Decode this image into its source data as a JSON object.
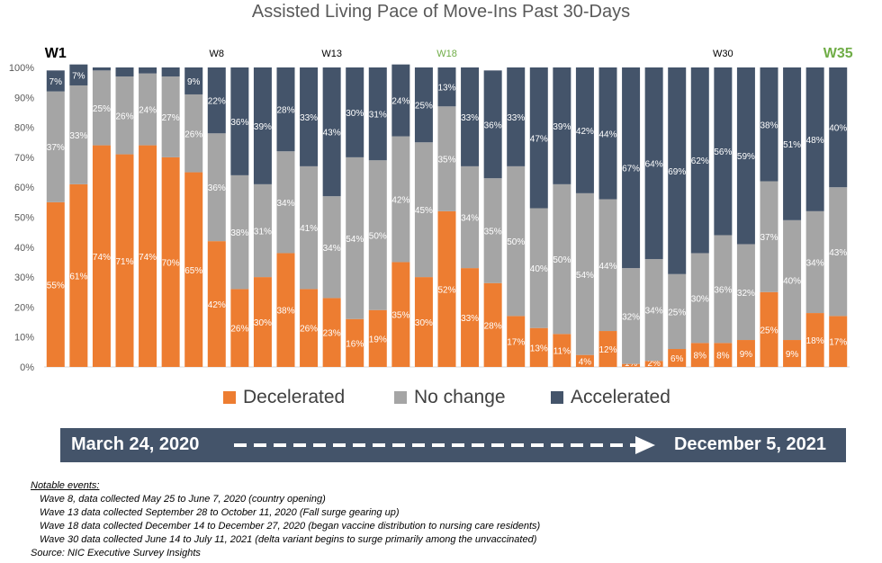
{
  "chart_data": {
    "type": "bar",
    "stacked": true,
    "title": "Assisted Living Pace of Move-Ins Past 30-Days",
    "y_tick_labels": [
      "0%",
      "10%",
      "20%",
      "30%",
      "40%",
      "50%",
      "60%",
      "70%",
      "80%",
      "90%",
      "100%"
    ],
    "ylim": [
      0,
      100
    ],
    "legend_position": "bottom",
    "bar_count": 35,
    "wave_labels": [
      {
        "bar": 1,
        "text": "W1",
        "color": "#000000",
        "size": "large"
      },
      {
        "bar": 8,
        "text": "W8",
        "color": "#000000",
        "size": "small"
      },
      {
        "bar": 13,
        "text": "W13",
        "color": "#000000",
        "size": "small"
      },
      {
        "bar": 18,
        "text": "W18",
        "color": "#70AD47",
        "size": "small"
      },
      {
        "bar": 30,
        "text": "W30",
        "color": "#000000",
        "size": "small"
      },
      {
        "bar": 35,
        "text": "W35",
        "color": "#70AD47",
        "size": "large"
      }
    ],
    "series": [
      {
        "name": "Decelerated",
        "color": "#ED7D31",
        "values": [
          55,
          61,
          74,
          71,
          74,
          70,
          65,
          42,
          26,
          30,
          38,
          26,
          23,
          16,
          19,
          35,
          30,
          52,
          33,
          28,
          17,
          13,
          11,
          4,
          12,
          1,
          2,
          6,
          8,
          8,
          9,
          25,
          9,
          18,
          17
        ],
        "labels": [
          "55%",
          "61%",
          "74%",
          "71%",
          "74%",
          "70%",
          "65%",
          "42%",
          "26%",
          "30%",
          "38%",
          "26%",
          "23%",
          "16%",
          "19%",
          "35%",
          "30%",
          "52%",
          "33%",
          "28%",
          "17%",
          "13%",
          "11%",
          "4%",
          "12%",
          "1%",
          "2%",
          "6%",
          "8%",
          "8%",
          "9%",
          "25%",
          "9%",
          "18%",
          "17%"
        ]
      },
      {
        "name": "No change",
        "color": "#A5A5A5",
        "values": [
          37,
          33,
          25,
          26,
          24,
          27,
          26,
          36,
          38,
          31,
          34,
          41,
          34,
          54,
          50,
          42,
          45,
          35,
          34,
          35,
          50,
          40,
          50,
          54,
          44,
          32,
          34,
          25,
          30,
          36,
          32,
          37,
          40,
          34,
          43
        ],
        "labels": [
          "37%",
          "33%",
          "25%",
          "26%",
          "24%",
          "27%",
          "26%",
          "36%",
          "38%",
          "31%",
          "34%",
          "41%",
          "34%",
          "54%",
          "50%",
          "42%",
          "45%",
          "35%",
          "34%",
          "35%",
          "50%",
          "40%",
          "50%",
          "54%",
          "44%",
          "32%",
          "34%",
          "25%",
          "30%",
          "36%",
          "32%",
          "37%",
          "40%",
          "34%",
          "43%"
        ]
      },
      {
        "name": "Accelerated",
        "color": "#44546A",
        "values": [
          7,
          7,
          1,
          3,
          2,
          3,
          9,
          22,
          36,
          39,
          28,
          33,
          43,
          30,
          31,
          24,
          25,
          13,
          33,
          36,
          33,
          47,
          39,
          42,
          44,
          67,
          64,
          69,
          62,
          56,
          59,
          38,
          51,
          48,
          40
        ],
        "labels": [
          "7%",
          "7%",
          "",
          "",
          "",
          "",
          "9%",
          "22%",
          "36%",
          "39%",
          "28%",
          "33%",
          "43%",
          "30%",
          "31%",
          "24%",
          "25%",
          "13%",
          "33%",
          "36%",
          "33%",
          "47%",
          "39%",
          "42%",
          "44%",
          "67%",
          "64%",
          "69%",
          "62%",
          "56%",
          "59%",
          "38%",
          "51%",
          "48%",
          "40%"
        ]
      }
    ]
  },
  "timeline": {
    "start": "March 24, 2020",
    "end": "December 5, 2021"
  },
  "notes": {
    "title": "Notable events:",
    "items": [
      "Wave 8, data collected  May 25 to June 7, 2020 (country opening)",
      "Wave 13 data collected September  28 to October 11, 2020 (Fall surge gearing up)",
      "Wave 18 data collected December  14 to December 27, 2020  (began vaccine distribution to nursing care residents)",
      "Wave 30 data collected June 14 to July 11, 2021 (delta variant begins to surge primarily among the unvaccinated)"
    ],
    "source": "Source: NIC Executive Survey Insights"
  }
}
